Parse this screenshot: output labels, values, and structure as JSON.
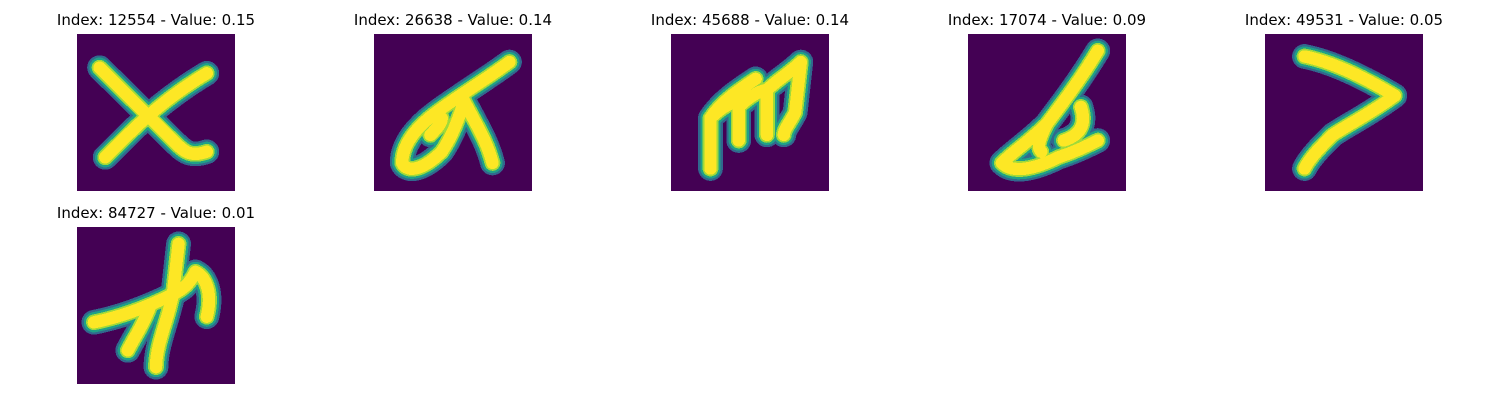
{
  "figure": {
    "background": "#440154",
    "stroke_colors": {
      "core": "#fde725",
      "mid": "#a0da39",
      "edge": "#1fa187",
      "halo": "#31688e"
    },
    "panels": [
      {
        "title": "Index: 12554 - Value: 0.15",
        "index": 12554,
        "value": 0.15,
        "glyph": "x-shape"
      },
      {
        "title": "Index: 26638 - Value: 0.14",
        "index": 26638,
        "value": 0.14,
        "glyph": "loop-stroke"
      },
      {
        "title": "Index: 45688 - Value: 0.14",
        "index": 45688,
        "value": 0.14,
        "glyph": "m-shape"
      },
      {
        "title": "Index: 17074 - Value: 0.09",
        "index": 17074,
        "value": 0.09,
        "glyph": "looped-a"
      },
      {
        "title": "Index: 49531 - Value: 0.05",
        "index": 49531,
        "value": 0.05,
        "glyph": "seven-shape"
      },
      {
        "title": "Index: 84727 - Value: 0.01",
        "index": 84727,
        "value": 0.01,
        "glyph": "kanji-like"
      }
    ]
  }
}
